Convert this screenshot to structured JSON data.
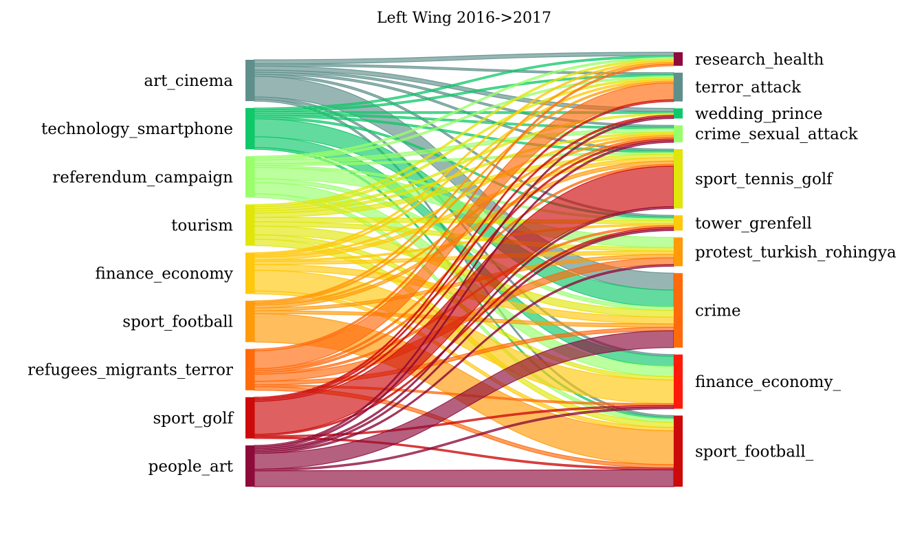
{
  "chart_data": {
    "type": "sankey",
    "title": "Left Wing 2016->2017",
    "source_nodes": [
      {
        "name": "art_cinema",
        "color": "#5f8f8b"
      },
      {
        "name": "technology_smartphone",
        "color": "#0fc86a"
      },
      {
        "name": "referendum_campaign",
        "color": "#98ff6a"
      },
      {
        "name": "tourism",
        "color": "#e0e60a"
      },
      {
        "name": "finance_economy",
        "color": "#ffc80c"
      },
      {
        "name": "sport_football",
        "color": "#ff9a08"
      },
      {
        "name": "refugees_migrants_terror",
        "color": "#ff6a0a"
      },
      {
        "name": "sport_golf",
        "color": "#cc0a0a"
      },
      {
        "name": "people_art",
        "color": "#8e0a3a"
      }
    ],
    "target_nodes": [
      {
        "name": "research_health",
        "color": "#8e0a3a"
      },
      {
        "name": "terror_attack",
        "color": "#5f8f8b"
      },
      {
        "name": "wedding_prince",
        "color": "#0fc86a"
      },
      {
        "name": "crime_sexual_attack",
        "color": "#98ff6a"
      },
      {
        "name": "sport_tennis_golf",
        "color": "#e0e60a"
      },
      {
        "name": "tower_grenfell",
        "color": "#ffc80c"
      },
      {
        "name": "protest_turkish_rohingya",
        "color": "#ff9a08"
      },
      {
        "name": "crime",
        "color": "#ff6a0a"
      },
      {
        "name": "finance_economy_",
        "color": "#ff1a0a"
      },
      {
        "name": "sport_football_",
        "color": "#cc0a0a"
      }
    ],
    "flows": [
      {
        "source": 0,
        "target": 0,
        "value": 1
      },
      {
        "source": 0,
        "target": 1,
        "value": 0.5
      },
      {
        "source": 0,
        "target": 2,
        "value": 1
      },
      {
        "source": 0,
        "target": 3,
        "value": 0.5
      },
      {
        "source": 0,
        "target": 4,
        "value": 0.5
      },
      {
        "source": 0,
        "target": 5,
        "value": 0.5
      },
      {
        "source": 0,
        "target": 7,
        "value": 5
      },
      {
        "source": 0,
        "target": 8,
        "value": 0.5
      },
      {
        "source": 0,
        "target": 9,
        "value": 0.5
      },
      {
        "source": 1,
        "target": 0,
        "value": 0.5
      },
      {
        "source": 1,
        "target": 1,
        "value": 0.5
      },
      {
        "source": 1,
        "target": 2,
        "value": 0.5
      },
      {
        "source": 1,
        "target": 3,
        "value": 0.5
      },
      {
        "source": 1,
        "target": 4,
        "value": 0.5
      },
      {
        "source": 1,
        "target": 5,
        "value": 0.5
      },
      {
        "source": 1,
        "target": 7,
        "value": 5
      },
      {
        "source": 1,
        "target": 8,
        "value": 3
      },
      {
        "source": 1,
        "target": 9,
        "value": 0.5
      },
      {
        "source": 2,
        "target": 0,
        "value": 0.5
      },
      {
        "source": 2,
        "target": 1,
        "value": 0.5
      },
      {
        "source": 2,
        "target": 3,
        "value": 1
      },
      {
        "source": 2,
        "target": 4,
        "value": 0.5
      },
      {
        "source": 2,
        "target": 5,
        "value": 0.5
      },
      {
        "source": 2,
        "target": 6,
        "value": 3
      },
      {
        "source": 2,
        "target": 7,
        "value": 1
      },
      {
        "source": 2,
        "target": 8,
        "value": 3
      },
      {
        "source": 2,
        "target": 9,
        "value": 1
      },
      {
        "source": 3,
        "target": 0,
        "value": 0.5
      },
      {
        "source": 3,
        "target": 1,
        "value": 0.5
      },
      {
        "source": 3,
        "target": 2,
        "value": 0.5
      },
      {
        "source": 3,
        "target": 3,
        "value": 0.5
      },
      {
        "source": 3,
        "target": 4,
        "value": 1
      },
      {
        "source": 3,
        "target": 5,
        "value": 1
      },
      {
        "source": 3,
        "target": 6,
        "value": 1
      },
      {
        "source": 3,
        "target": 7,
        "value": 2
      },
      {
        "source": 3,
        "target": 8,
        "value": 1
      },
      {
        "source": 3,
        "target": 9,
        "value": 1.5
      },
      {
        "source": 4,
        "target": 0,
        "value": 0.5
      },
      {
        "source": 4,
        "target": 1,
        "value": 0.5
      },
      {
        "source": 4,
        "target": 3,
        "value": 0.5
      },
      {
        "source": 4,
        "target": 4,
        "value": 1
      },
      {
        "source": 4,
        "target": 5,
        "value": 0.5
      },
      {
        "source": 4,
        "target": 6,
        "value": 1
      },
      {
        "source": 4,
        "target": 7,
        "value": 2
      },
      {
        "source": 4,
        "target": 8,
        "value": 7
      },
      {
        "source": 4,
        "target": 9,
        "value": 1
      },
      {
        "source": 5,
        "target": 0,
        "value": 0.5
      },
      {
        "source": 5,
        "target": 1,
        "value": 0.5
      },
      {
        "source": 5,
        "target": 3,
        "value": 0.5
      },
      {
        "source": 5,
        "target": 4,
        "value": 1
      },
      {
        "source": 5,
        "target": 6,
        "value": 1
      },
      {
        "source": 5,
        "target": 7,
        "value": 1
      },
      {
        "source": 5,
        "target": 9,
        "value": 10
      },
      {
        "source": 6,
        "target": 0,
        "value": 0.5
      },
      {
        "source": 6,
        "target": 1,
        "value": 5
      },
      {
        "source": 6,
        "target": 3,
        "value": 0.5
      },
      {
        "source": 6,
        "target": 4,
        "value": 0.5
      },
      {
        "source": 6,
        "target": 5,
        "value": 0.5
      },
      {
        "source": 6,
        "target": 6,
        "value": 2
      },
      {
        "source": 6,
        "target": 7,
        "value": 1
      },
      {
        "source": 6,
        "target": 8,
        "value": 0.5
      },
      {
        "source": 6,
        "target": 9,
        "value": 1
      },
      {
        "source": 7,
        "target": 1,
        "value": 0.5
      },
      {
        "source": 7,
        "target": 2,
        "value": 0.5
      },
      {
        "source": 7,
        "target": 3,
        "value": 0.5
      },
      {
        "source": 7,
        "target": 4,
        "value": 12
      },
      {
        "source": 7,
        "target": 5,
        "value": 0.5
      },
      {
        "source": 7,
        "target": 8,
        "value": 0.5
      },
      {
        "source": 7,
        "target": 9,
        "value": 0.5
      },
      {
        "source": 8,
        "target": 2,
        "value": 0.5
      },
      {
        "source": 8,
        "target": 3,
        "value": 0.5
      },
      {
        "source": 8,
        "target": 4,
        "value": 0.5
      },
      {
        "source": 8,
        "target": 5,
        "value": 0.5
      },
      {
        "source": 8,
        "target": 6,
        "value": 0.5
      },
      {
        "source": 8,
        "target": 7,
        "value": 5
      },
      {
        "source": 8,
        "target": 8,
        "value": 0.5
      },
      {
        "source": 8,
        "target": 9,
        "value": 5
      }
    ]
  }
}
